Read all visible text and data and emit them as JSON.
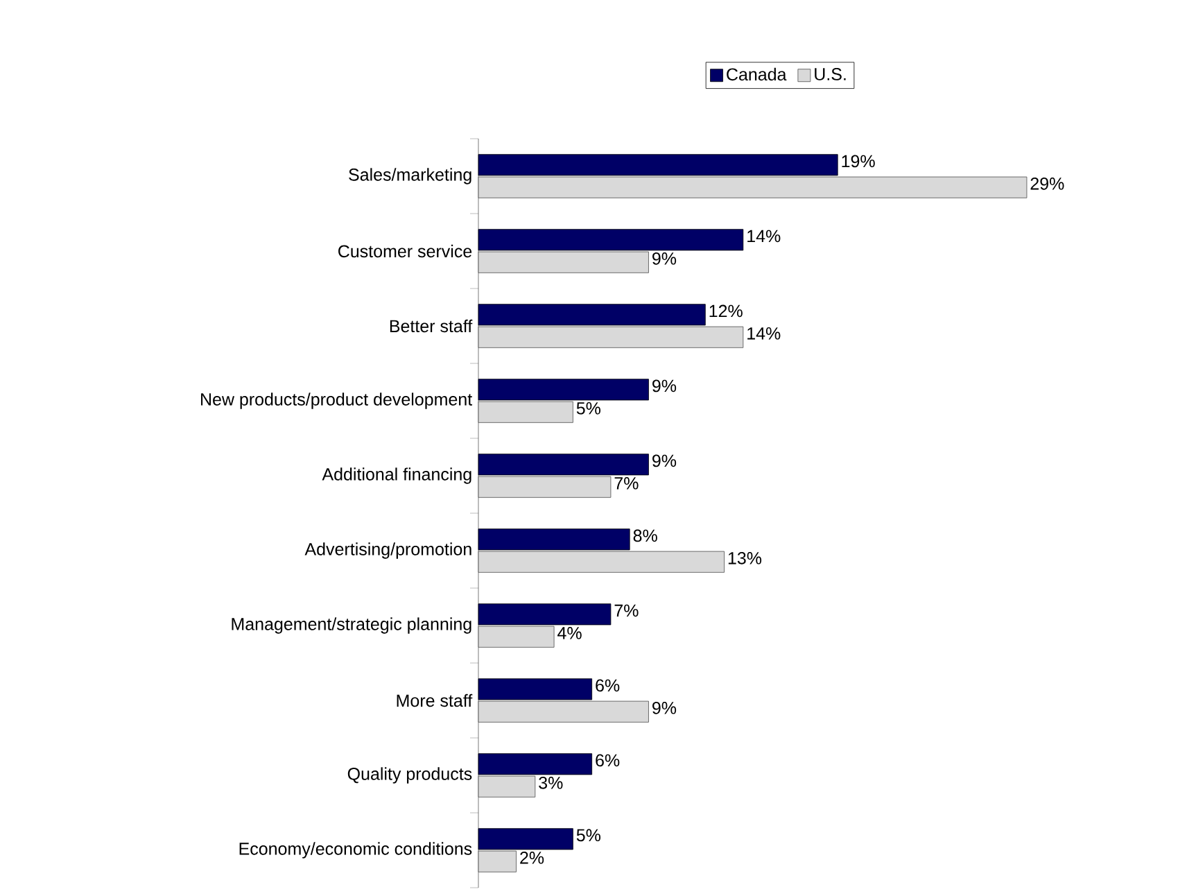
{
  "chart_data": {
    "type": "bar",
    "orientation": "horizontal",
    "legend": "top",
    "categories": [
      "Sales/marketing",
      "Customer service",
      "Better staff",
      "New products/product development",
      "Additional financing",
      "Advertising/promotion",
      "Management/strategic planning",
      "More staff",
      "Quality products",
      "Economy/economic conditions"
    ],
    "series": [
      {
        "name": "Canada",
        "color": "#000066",
        "values": [
          19,
          14,
          12,
          9,
          9,
          8,
          7,
          6,
          6,
          5
        ],
        "value_labels": [
          "19%",
          "14%",
          "12%",
          "9%",
          "9%",
          "8%",
          "7%",
          "6%",
          "6%",
          "5%"
        ]
      },
      {
        "name": "U.S.",
        "color": "#d9d9d9",
        "values": [
          29,
          9,
          14,
          5,
          7,
          13,
          4,
          9,
          3,
          2
        ],
        "value_labels": [
          "29%",
          "9%",
          "14%",
          "5%",
          "7%",
          "13%",
          "4%",
          "9%",
          "3%",
          "2%"
        ]
      }
    ]
  }
}
